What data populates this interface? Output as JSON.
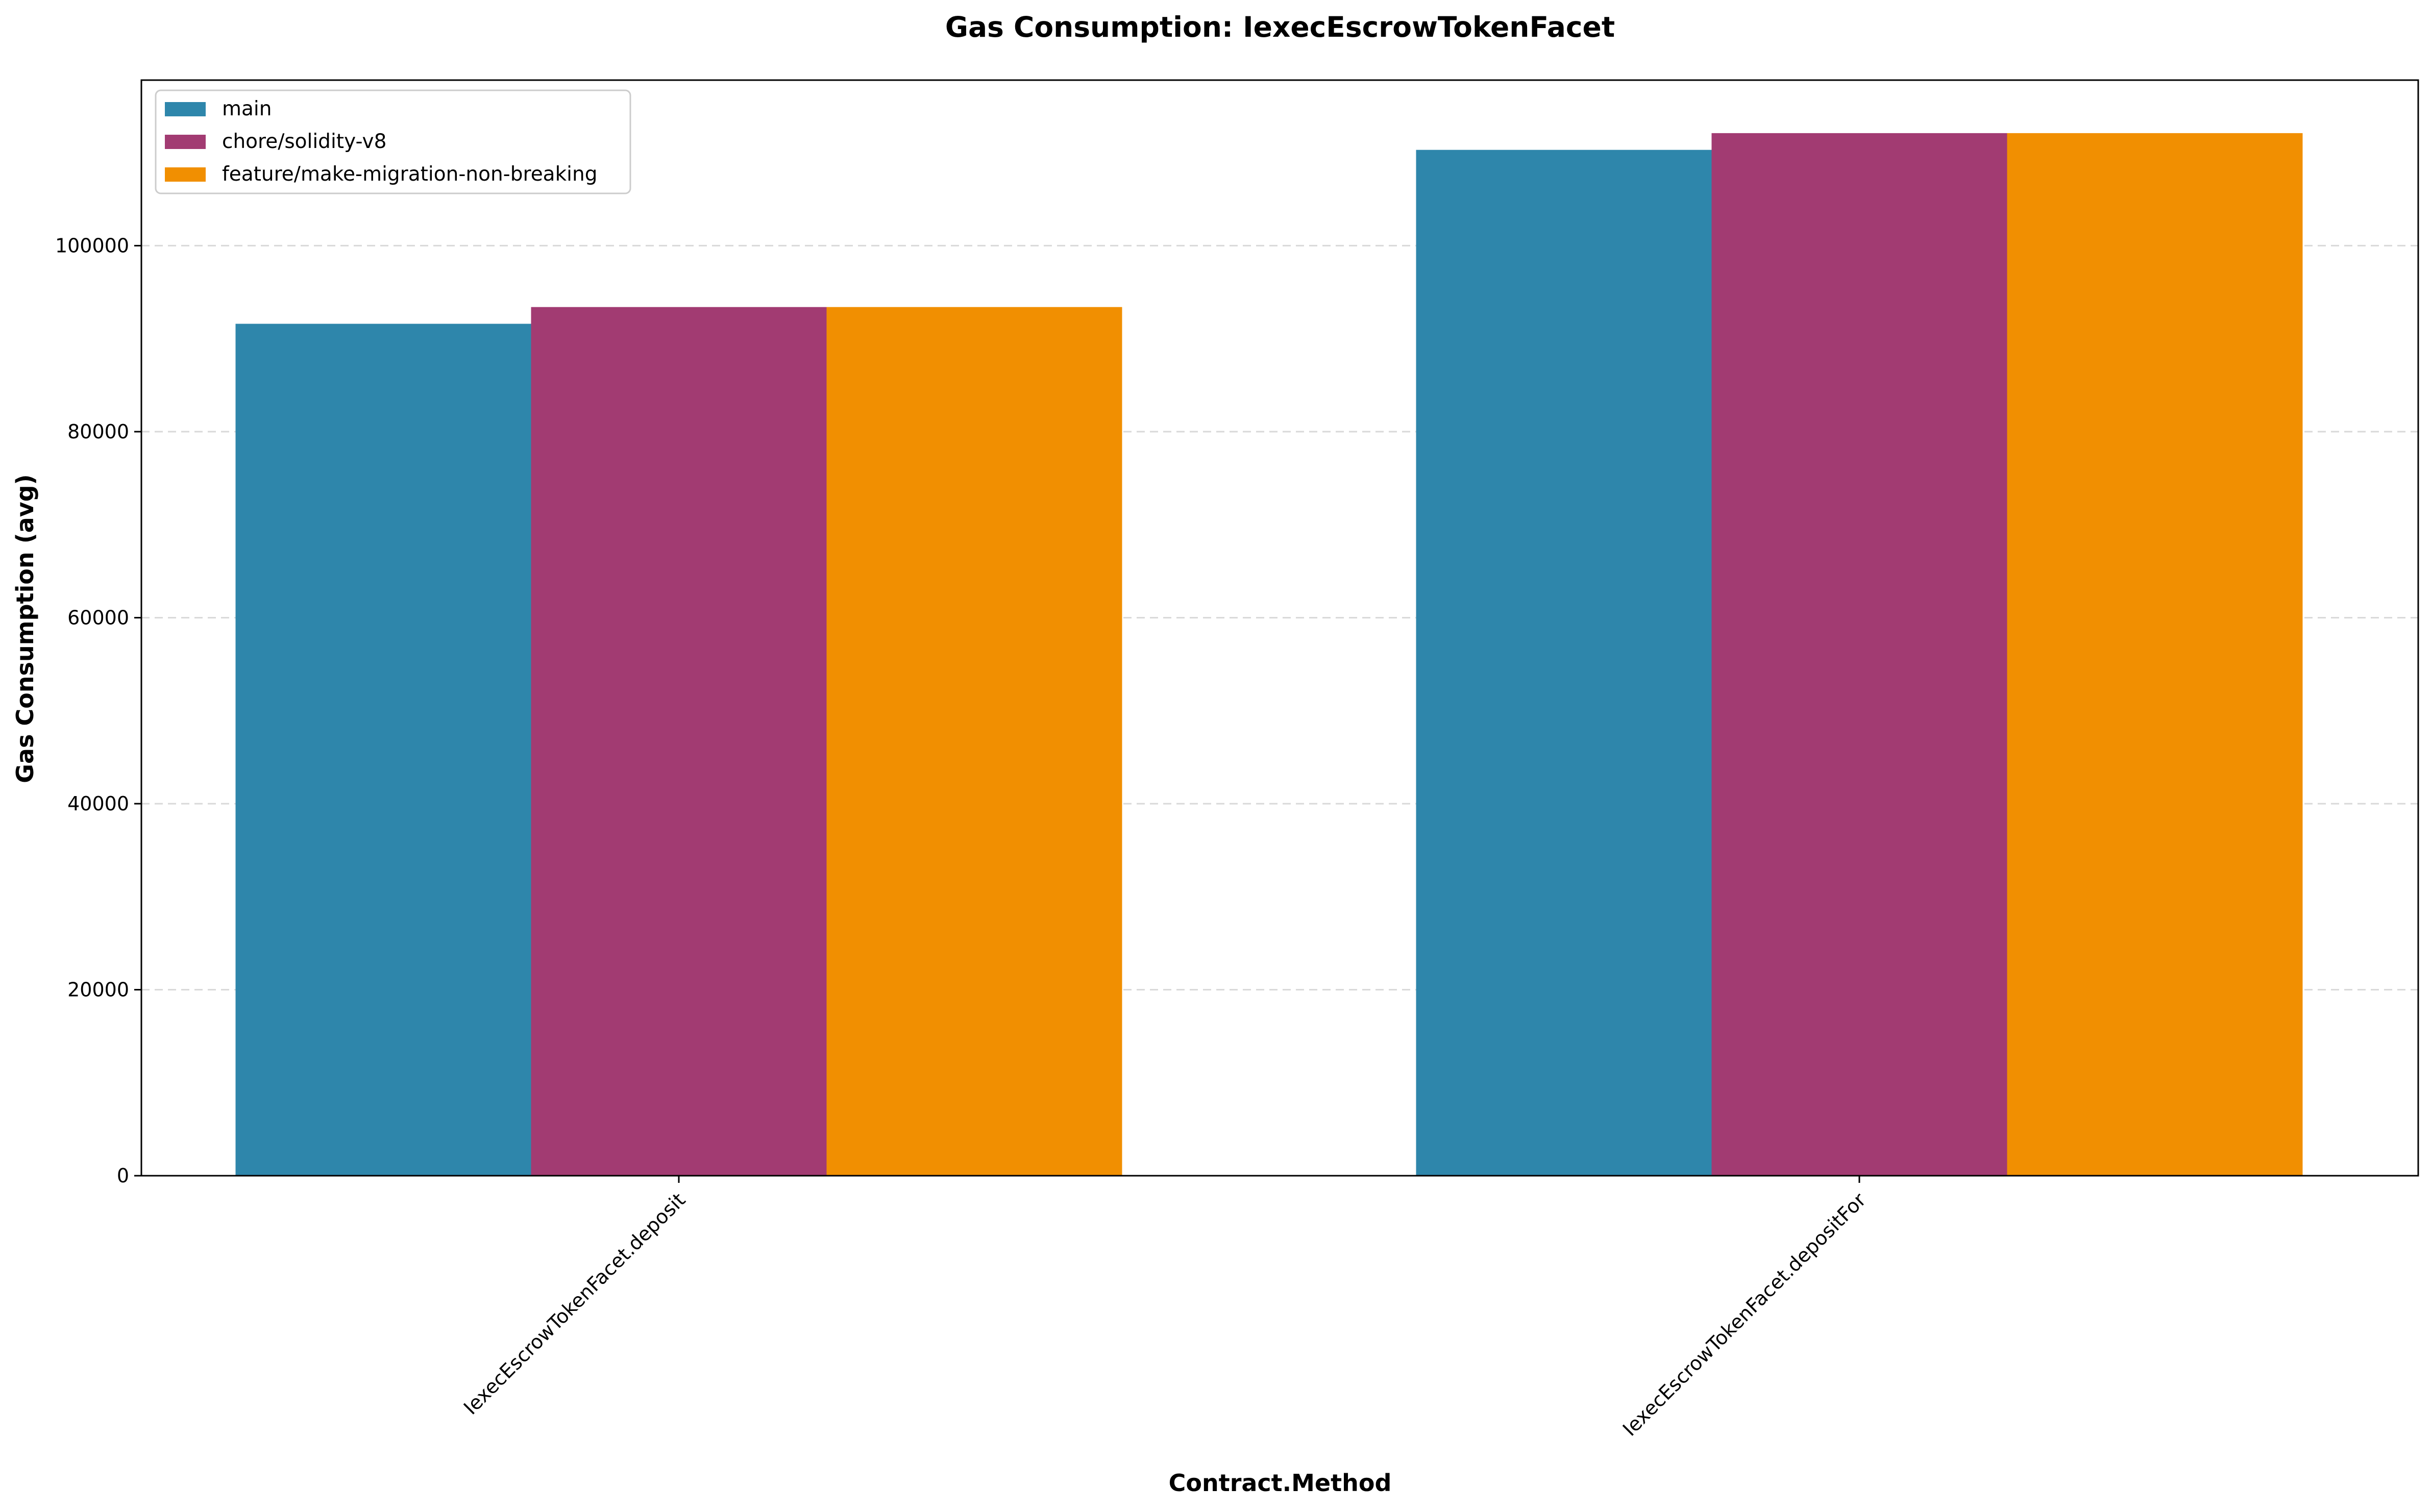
{
  "chart_data": {
    "type": "bar",
    "title": "Gas Consumption: IexecEscrowTokenFacet",
    "xlabel": "Contract.Method",
    "ylabel": "Gas Consumption (avg)",
    "categories": [
      "IexecEscrowTokenFacet.deposit",
      "IexecEscrowTokenFacet.depositFor"
    ],
    "series": [
      {
        "name": "main",
        "color": "#2e86ab",
        "values": [
          91600,
          110300
        ]
      },
      {
        "name": "chore/solidity-v8",
        "color": "#a23b72",
        "values": [
          93400,
          112100
        ]
      },
      {
        "name": "feature/make-migration-non-breaking",
        "color": "#f18f01",
        "values": [
          93400,
          112100
        ]
      }
    ],
    "ylim": [
      0,
      117800
    ],
    "yticks": [
      0,
      20000,
      40000,
      60000,
      80000,
      100000
    ],
    "ytick_labels": [
      "0",
      "20000",
      "40000",
      "60000",
      "80000",
      "100000"
    ],
    "grid": "y-dashed",
    "legend_position": "top-left"
  }
}
